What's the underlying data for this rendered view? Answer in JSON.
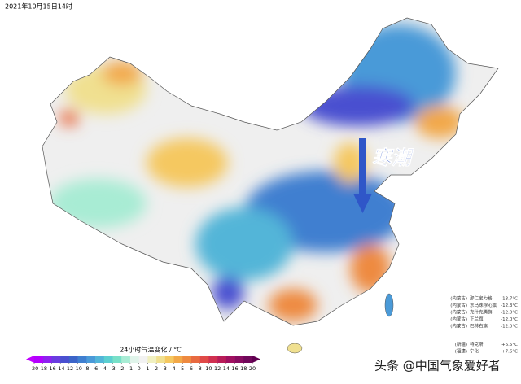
{
  "header": {
    "timestamp": "2021年10月15日14时"
  },
  "annotation": {
    "label": "寒潮"
  },
  "colorbar": {
    "title": "24小时气温变化 / °C",
    "ticks": [
      -20,
      -18,
      -16,
      -14,
      -12,
      -10,
      -8,
      -6,
      -4,
      -3,
      -2,
      -1,
      0,
      1,
      2,
      3,
      4,
      5,
      6,
      8,
      10,
      12,
      14,
      16,
      18,
      20
    ],
    "colors": [
      "#b300ff",
      "#8f20f0",
      "#6a3ce0",
      "#4a50d0",
      "#3c64c8",
      "#3f7fd0",
      "#4a9ad8",
      "#52b5d8",
      "#5ccfd0",
      "#78e0c8",
      "#a8ecd4",
      "#e0f4ea",
      "#f2f2f2",
      "#f0f0c0",
      "#f0e090",
      "#f5c860",
      "#f2a848",
      "#ee8a40",
      "#e86a40",
      "#e04a48",
      "#d03050",
      "#b81c58",
      "#a01060",
      "#880c60",
      "#70085a"
    ],
    "under_color": "#c000ff",
    "over_color": "#600050"
  },
  "stations": [
    {
      "region": "(内蒙古)",
      "name": "那仁宝力格",
      "value": "-13.7°C"
    },
    {
      "region": "(内蒙古)",
      "name": "东乌珠穆沁旗",
      "value": "-12.3°C"
    },
    {
      "region": "(内蒙古)",
      "name": "克什克腾旗",
      "value": "-12.0°C"
    },
    {
      "region": "(内蒙古)",
      "name": "正兰旗",
      "value": "-12.0°C"
    },
    {
      "region": "(内蒙古)",
      "name": "巴林右旗",
      "value": "-12.0°C"
    },
    {
      "region": "(新疆)",
      "name": "特克斯",
      "value": "+6.5°C"
    },
    {
      "region": "(福建)",
      "name": "宁化",
      "value": "+7.6°C"
    }
  ],
  "watermark": "头条 @中国气象爱好者"
}
